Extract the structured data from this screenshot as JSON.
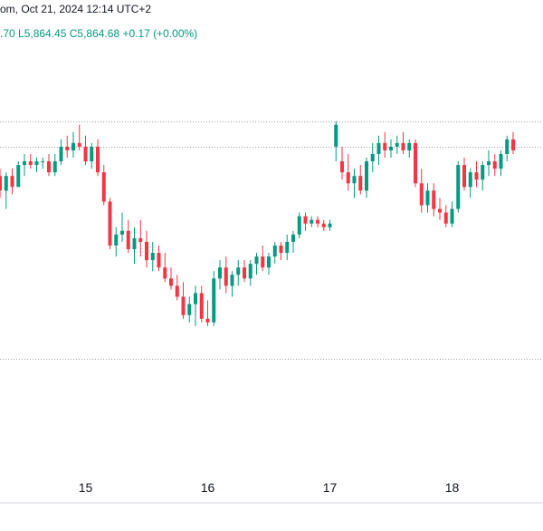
{
  "header": {
    "line1": "om, Oct 21, 2024 12:14 UTC+2",
    "line2": ".70  L5,864.45  C5,864.68  +0.17 (+0.00%)"
  },
  "colors": {
    "up": "#089981",
    "down": "#f23645",
    "grid": "#9aa3b1",
    "axis": "#d1d4dc"
  },
  "chart_data": {
    "type": "candlestick",
    "title": "",
    "xlabel": "",
    "ylabel": "",
    "x_tick_labels": [
      {
        "label": "15",
        "index": 14.0
      },
      {
        "label": "16",
        "index": 34.0
      },
      {
        "label": "17",
        "index": 54.0
      },
      {
        "label": "18",
        "index": 74.0
      }
    ],
    "y_scale": {
      "domain": [
        0,
        100
      ]
    },
    "grid_lines_y": [
      85,
      78,
      20
    ],
    "candles": [
      [
        70,
        72,
        64,
        66
      ],
      [
        66,
        71,
        61,
        70
      ],
      [
        70,
        72,
        65,
        67
      ],
      [
        67,
        74,
        68,
        73
      ],
      [
        73,
        76,
        70,
        74
      ],
      [
        74,
        76,
        72,
        73
      ],
      [
        73,
        75,
        71,
        74
      ],
      [
        74,
        75,
        72,
        74
      ],
      [
        74,
        76,
        70,
        71
      ],
      [
        71,
        76,
        70,
        74
      ],
      [
        74,
        80,
        73,
        78
      ],
      [
        78,
        81,
        75,
        77
      ],
      [
        77,
        82,
        75,
        79
      ],
      [
        79,
        84,
        77,
        78
      ],
      [
        78,
        81,
        73,
        74
      ],
      [
        74,
        79,
        72,
        78
      ],
      [
        78,
        80,
        70,
        71
      ],
      [
        71,
        73,
        62,
        63
      ],
      [
        63,
        64,
        50,
        51
      ],
      [
        51,
        56,
        48,
        54
      ],
      [
        54,
        60,
        52,
        55
      ],
      [
        55,
        58,
        49,
        50
      ],
      [
        50,
        56,
        46,
        53
      ],
      [
        53,
        58,
        48,
        52
      ],
      [
        52,
        55,
        45,
        47
      ],
      [
        47,
        52,
        44,
        49
      ],
      [
        49,
        51,
        44,
        45
      ],
      [
        45,
        49,
        41,
        42
      ],
      [
        42,
        45,
        39,
        40
      ],
      [
        40,
        43,
        36,
        37
      ],
      [
        37,
        41,
        31,
        32
      ],
      [
        32,
        37,
        30,
        35
      ],
      [
        35,
        40,
        29,
        38
      ],
      [
        38,
        40,
        30,
        31
      ],
      [
        31,
        36,
        29,
        30
      ],
      [
        30,
        44,
        29,
        42
      ],
      [
        42,
        47,
        39,
        45
      ],
      [
        45,
        48,
        38,
        40
      ],
      [
        40,
        44,
        37,
        43
      ],
      [
        43,
        47,
        40,
        45
      ],
      [
        45,
        47,
        41,
        42
      ],
      [
        42,
        47,
        40,
        46
      ],
      [
        46,
        49,
        43,
        48
      ],
      [
        48,
        51,
        44,
        45
      ],
      [
        45,
        49,
        43,
        48
      ],
      [
        48,
        52,
        46,
        51
      ],
      [
        51,
        52,
        47,
        49
      ],
      [
        49,
        54,
        47,
        52
      ],
      [
        52,
        55,
        49,
        54
      ],
      [
        54,
        60,
        53,
        59
      ],
      [
        59,
        60,
        55,
        57
      ],
      [
        57,
        59,
        56,
        58
      ],
      [
        58,
        59,
        56,
        57
      ],
      [
        57,
        58,
        55,
        56
      ],
      [
        56,
        58,
        55,
        57
      ],
      [
        78,
        85,
        74,
        84
      ],
      [
        74,
        78,
        69,
        71
      ],
      [
        71,
        76,
        66,
        68
      ],
      [
        68,
        72,
        64,
        70
      ],
      [
        70,
        73,
        65,
        66
      ],
      [
        66,
        75,
        64,
        74
      ],
      [
        74,
        79,
        71,
        76
      ],
      [
        76,
        81,
        73,
        79
      ],
      [
        79,
        82,
        75,
        77
      ],
      [
        77,
        80,
        75,
        78
      ],
      [
        78,
        81,
        76,
        79
      ],
      [
        79,
        82,
        76,
        77
      ],
      [
        77,
        80,
        75,
        79
      ],
      [
        79,
        80,
        67,
        68
      ],
      [
        68,
        72,
        60,
        62
      ],
      [
        62,
        68,
        60,
        66
      ],
      [
        66,
        68,
        59,
        61
      ],
      [
        61,
        64,
        58,
        60
      ],
      [
        60,
        62,
        56,
        57
      ],
      [
        57,
        63,
        56,
        61
      ],
      [
        61,
        74,
        60,
        73
      ],
      [
        73,
        75,
        66,
        67
      ],
      [
        67,
        72,
        64,
        71
      ],
      [
        71,
        74,
        67,
        69
      ],
      [
        69,
        74,
        66,
        73
      ],
      [
        73,
        77,
        70,
        74
      ],
      [
        74,
        76,
        70,
        72
      ],
      [
        72,
        77,
        70,
        76
      ],
      [
        76,
        81,
        74,
        80
      ],
      [
        80,
        82,
        76,
        77
      ]
    ]
  }
}
